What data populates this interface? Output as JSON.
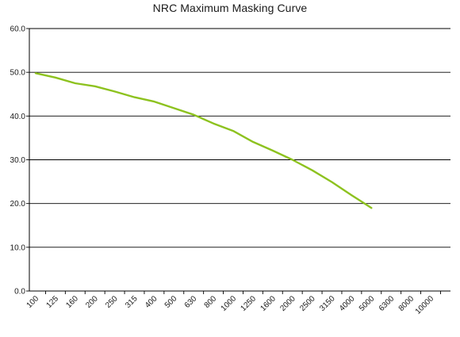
{
  "chart_data": {
    "type": "line",
    "title": "NRC Maximum Masking Curve",
    "xlabel": "",
    "ylabel": "",
    "categories": [
      "100",
      "125",
      "160",
      "200",
      "250",
      "315",
      "400",
      "500",
      "630",
      "800",
      "1000",
      "1250",
      "1600",
      "2000",
      "2500",
      "3150",
      "4000",
      "5000",
      "6300",
      "8000",
      "10000"
    ],
    "y_ticks": [
      "0.0",
      "10.0",
      "20.0",
      "30.0",
      "40.0",
      "50.0",
      "60.0"
    ],
    "ylim": [
      0,
      60
    ],
    "grid": "horizontal",
    "legend": "none",
    "series": [
      {
        "color": "#8dc21f",
        "values": [
          49.8,
          48.8,
          47.5,
          46.8,
          45.6,
          44.3,
          43.3,
          41.8,
          40.3,
          38.3,
          36.6,
          34.1,
          32.1,
          30.0,
          27.6,
          24.9,
          21.9,
          19.0,
          null,
          null,
          null
        ]
      }
    ]
  }
}
